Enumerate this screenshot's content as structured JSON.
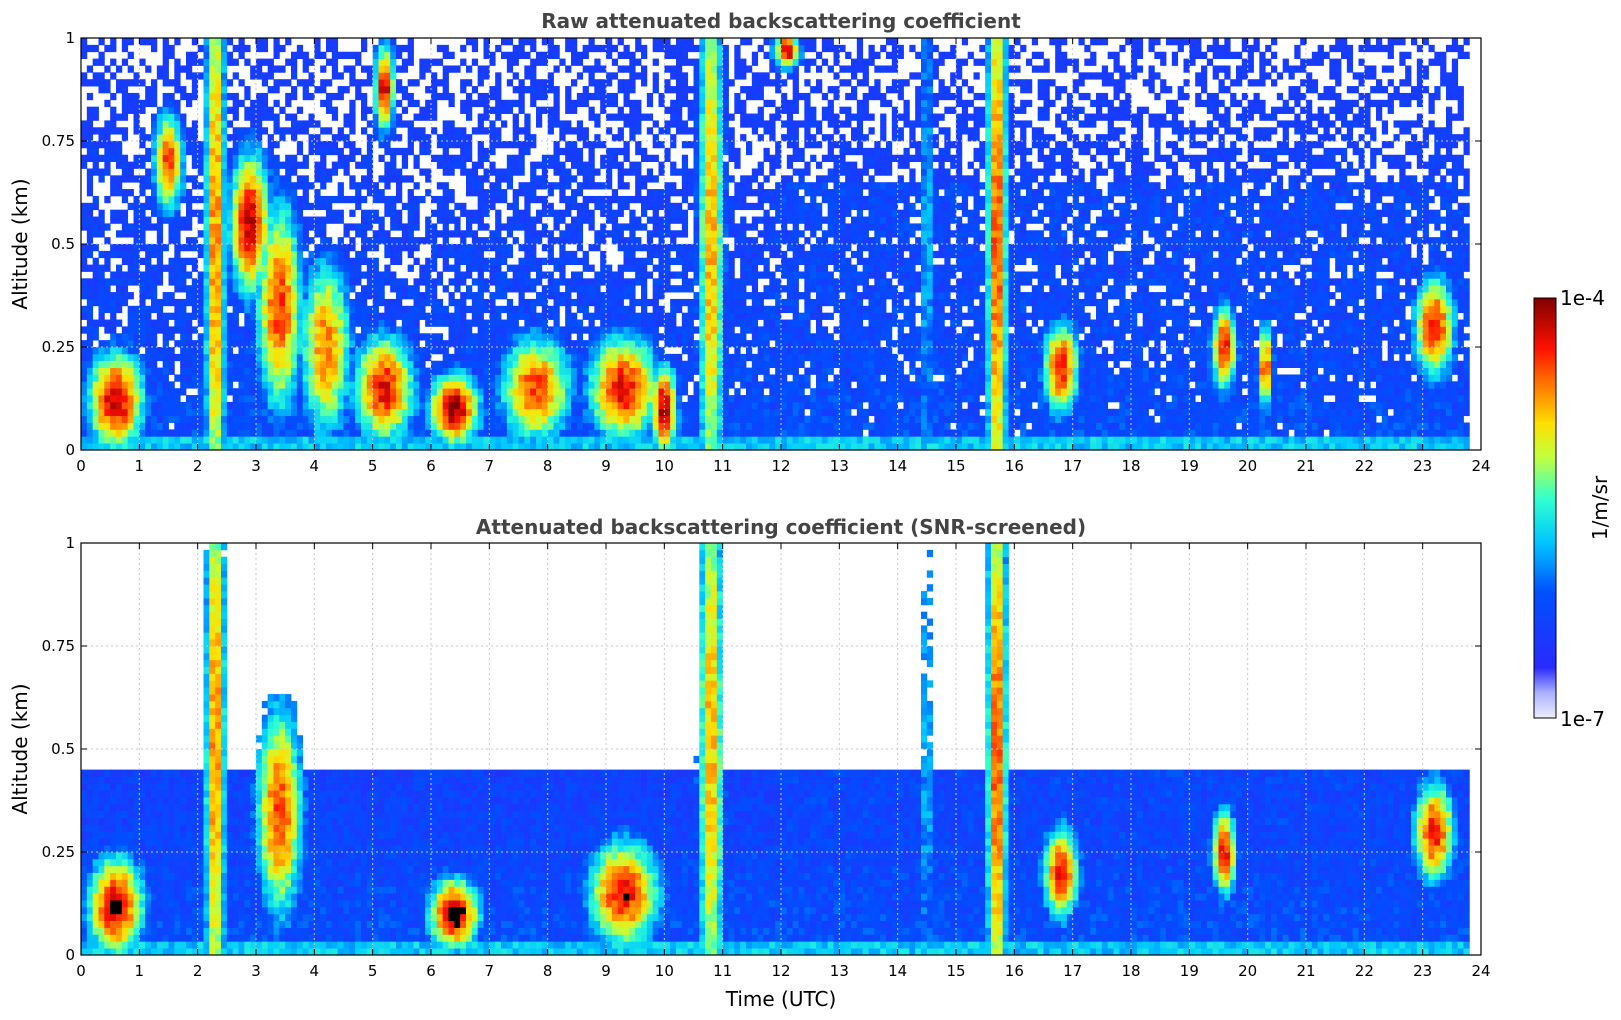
{
  "chart_data": [
    {
      "type": "heatmap",
      "title": "Raw attenuated backscattering coefficient",
      "xlabel": "",
      "ylabel": "Altitude (km)",
      "xlim": [
        0,
        24
      ],
      "ylim": [
        0,
        1
      ],
      "xticks": [
        "0",
        "1",
        "2",
        "3",
        "4",
        "5",
        "6",
        "7",
        "8",
        "9",
        "10",
        "11",
        "12",
        "13",
        "14",
        "15",
        "16",
        "17",
        "18",
        "19",
        "20",
        "21",
        "22",
        "23",
        "24"
      ],
      "yticks": [
        "0",
        "0.25",
        "0.5",
        "0.75",
        "1"
      ],
      "grid": true,
      "screened": false,
      "colorscale": "jet",
      "cloud_events": [
        {
          "t": 0.6,
          "alt": 0.12,
          "w": 0.55,
          "h": 0.14,
          "v": 0.95
        },
        {
          "t": 1.5,
          "alt": 0.7,
          "w": 0.3,
          "h": 0.14,
          "v": 0.85
        },
        {
          "t": 2.3,
          "alt": 0.5,
          "w": 0.2,
          "h": 1.0,
          "v": 0.8
        },
        {
          "t": 2.9,
          "alt": 0.55,
          "w": 0.4,
          "h": 0.2,
          "v": 0.95
        },
        {
          "t": 3.4,
          "alt": 0.35,
          "w": 0.45,
          "h": 0.3,
          "v": 0.85
        },
        {
          "t": 4.2,
          "alt": 0.25,
          "w": 0.5,
          "h": 0.25,
          "v": 0.8
        },
        {
          "t": 5.2,
          "alt": 0.15,
          "w": 0.6,
          "h": 0.15,
          "v": 0.9
        },
        {
          "t": 5.2,
          "alt": 0.88,
          "w": 0.2,
          "h": 0.12,
          "v": 0.95
        },
        {
          "t": 6.4,
          "alt": 0.1,
          "w": 0.5,
          "h": 0.1,
          "v": 0.98
        },
        {
          "t": 7.8,
          "alt": 0.15,
          "w": 0.7,
          "h": 0.15,
          "v": 0.85
        },
        {
          "t": 9.3,
          "alt": 0.15,
          "w": 0.7,
          "h": 0.15,
          "v": 0.9
        },
        {
          "t": 10.0,
          "alt": 0.1,
          "w": 0.25,
          "h": 0.12,
          "v": 0.98
        },
        {
          "t": 10.8,
          "alt": 0.5,
          "w": 0.25,
          "h": 1.0,
          "v": 0.75
        },
        {
          "t": 12.1,
          "alt": 0.97,
          "w": 0.25,
          "h": 0.05,
          "v": 0.95
        },
        {
          "t": 14.5,
          "alt": 0.5,
          "w": 0.08,
          "h": 1.0,
          "v": 0.55
        },
        {
          "t": 15.7,
          "alt": 0.5,
          "w": 0.2,
          "h": 1.0,
          "v": 0.85
        },
        {
          "t": 16.8,
          "alt": 0.2,
          "w": 0.35,
          "h": 0.13,
          "v": 0.9
        },
        {
          "t": 19.6,
          "alt": 0.25,
          "w": 0.25,
          "h": 0.12,
          "v": 0.9
        },
        {
          "t": 20.3,
          "alt": 0.2,
          "w": 0.15,
          "h": 0.12,
          "v": 0.85
        },
        {
          "t": 23.2,
          "alt": 0.3,
          "w": 0.4,
          "h": 0.14,
          "v": 0.9
        }
      ]
    },
    {
      "type": "heatmap",
      "title": "Attenuated backscattering coefficient (SNR-screened)",
      "xlabel": "Time (UTC)",
      "ylabel": "Altitude (km)",
      "xlim": [
        0,
        24
      ],
      "ylim": [
        0,
        1
      ],
      "xticks": [
        "0",
        "1",
        "2",
        "3",
        "4",
        "5",
        "6",
        "7",
        "8",
        "9",
        "10",
        "11",
        "12",
        "13",
        "14",
        "15",
        "16",
        "17",
        "18",
        "19",
        "20",
        "21",
        "22",
        "23",
        "24"
      ],
      "yticks": [
        "0",
        "0.25",
        "0.5",
        "0.75",
        "1"
      ],
      "grid": true,
      "screened": true,
      "colorscale": "jet",
      "cloud_events": [
        {
          "t": 0.6,
          "alt": 0.12,
          "w": 0.55,
          "h": 0.14,
          "v": 0.95
        },
        {
          "t": 2.3,
          "alt": 0.5,
          "w": 0.2,
          "h": 1.0,
          "v": 0.8
        },
        {
          "t": 3.4,
          "alt": 0.35,
          "w": 0.45,
          "h": 0.3,
          "v": 0.85
        },
        {
          "t": 6.4,
          "alt": 0.1,
          "w": 0.5,
          "h": 0.1,
          "v": 0.98
        },
        {
          "t": 9.3,
          "alt": 0.15,
          "w": 0.7,
          "h": 0.15,
          "v": 0.9
        },
        {
          "t": 10.8,
          "alt": 0.5,
          "w": 0.25,
          "h": 1.0,
          "v": 0.75
        },
        {
          "t": 14.5,
          "alt": 0.5,
          "w": 0.08,
          "h": 1.0,
          "v": 0.55
        },
        {
          "t": 15.7,
          "alt": 0.5,
          "w": 0.2,
          "h": 1.0,
          "v": 0.85
        },
        {
          "t": 16.8,
          "alt": 0.2,
          "w": 0.35,
          "h": 0.13,
          "v": 0.9
        },
        {
          "t": 19.6,
          "alt": 0.25,
          "w": 0.25,
          "h": 0.12,
          "v": 0.9
        },
        {
          "t": 23.2,
          "alt": 0.3,
          "w": 0.4,
          "h": 0.14,
          "v": 0.9
        }
      ]
    }
  ],
  "colorbar": {
    "label": "1/m/sr",
    "max_label": "1e-4",
    "min_label": "1e-7",
    "range": [
      1e-07,
      0.0001
    ],
    "scale": "log"
  }
}
